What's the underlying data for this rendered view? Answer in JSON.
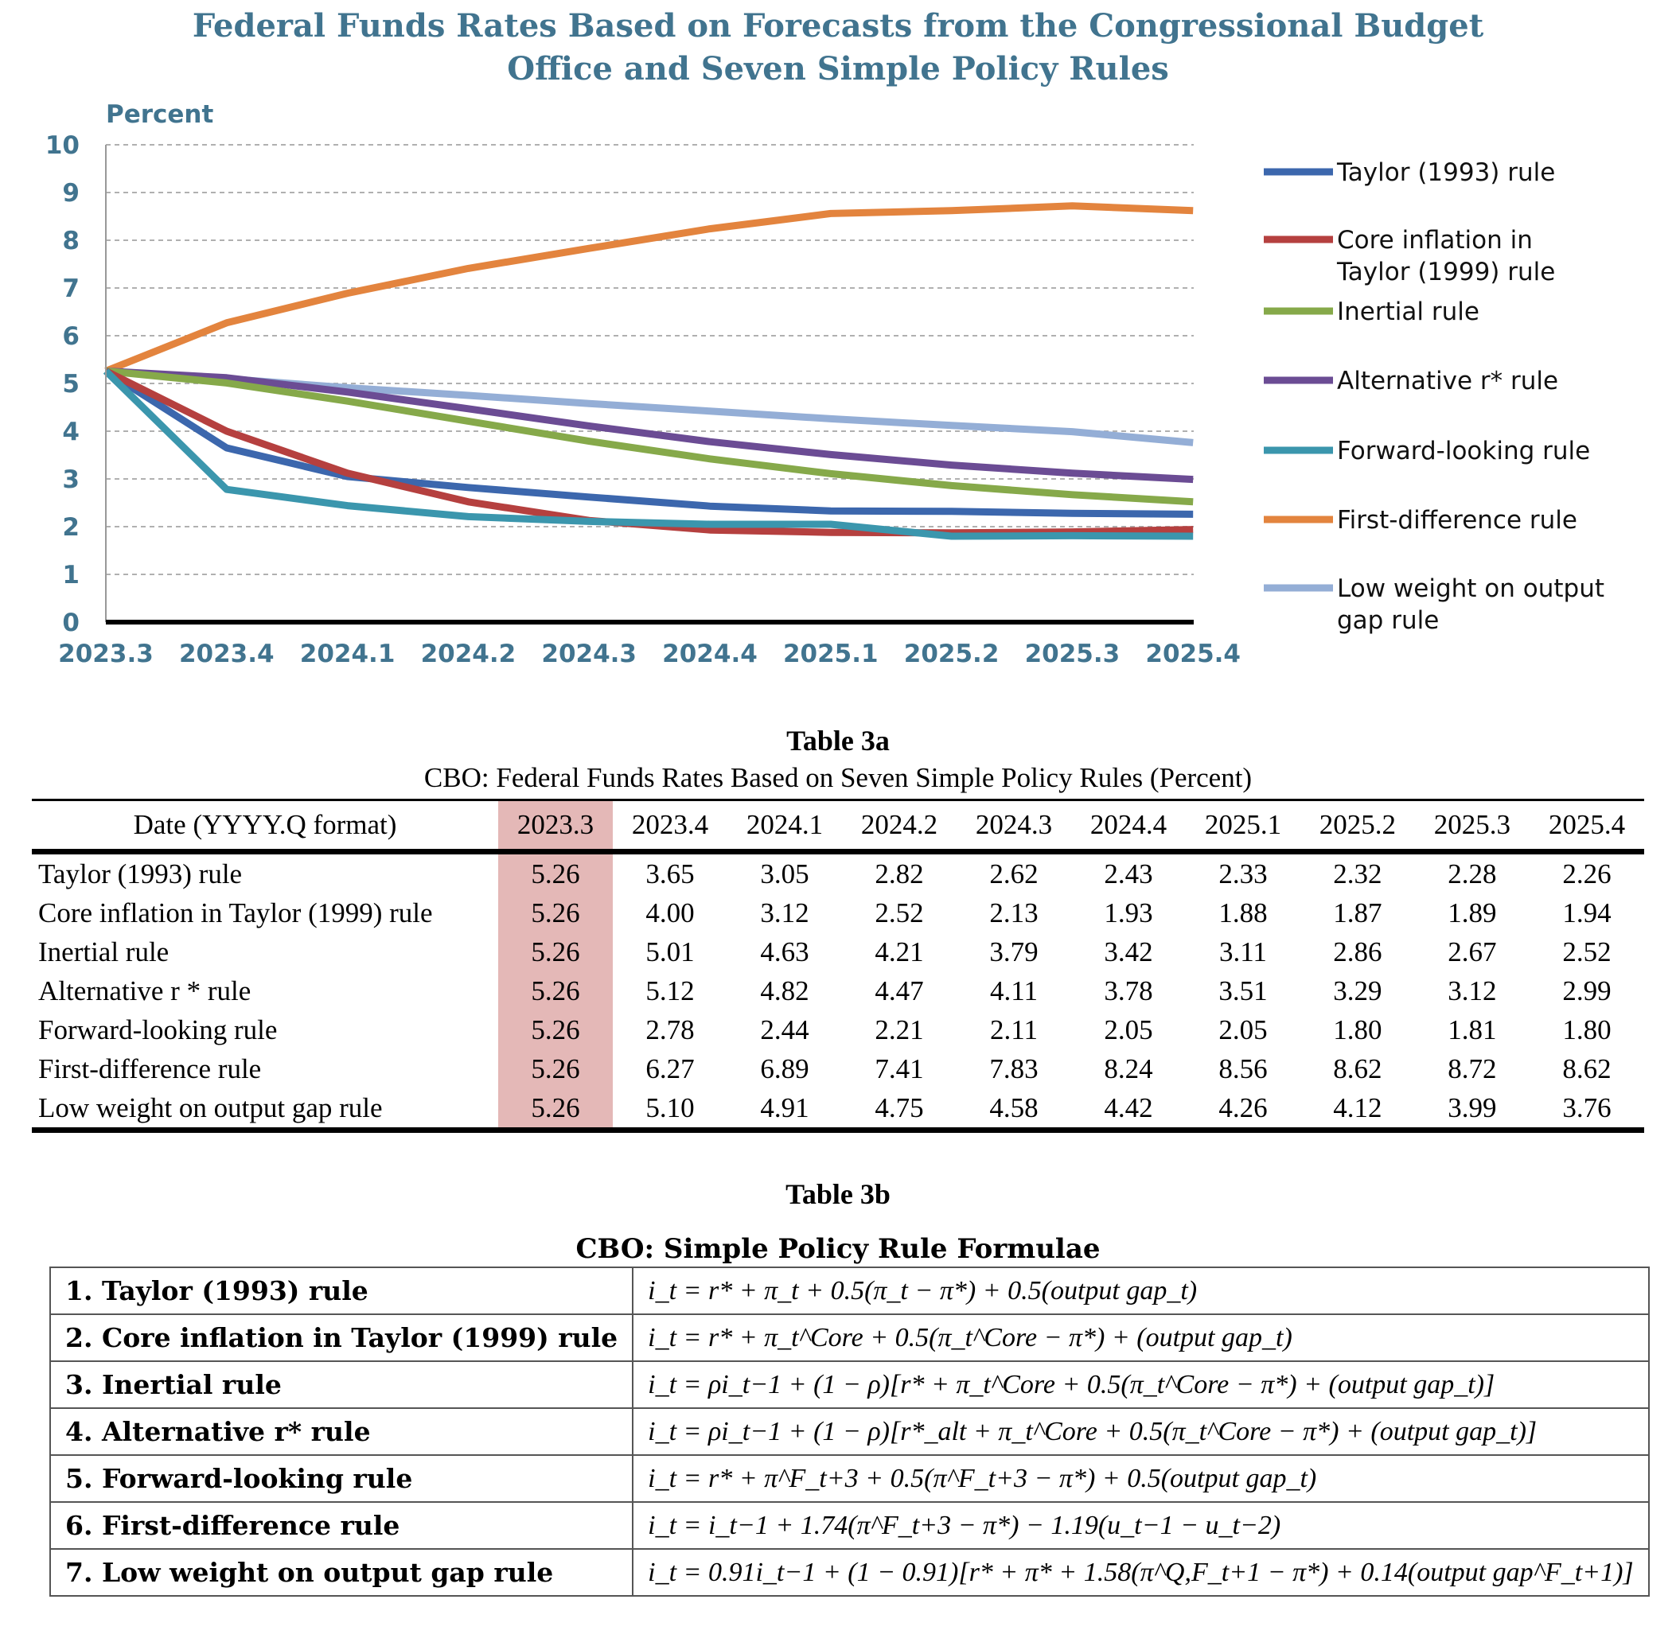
{
  "chart_data": {
    "type": "line",
    "title_line1": "Federal Funds Rates Based on Forecasts from the Congressional Budget",
    "title_line2": "Office and Seven Simple Policy Rules",
    "ylabel": "Percent",
    "xlabel": "",
    "ylim": [
      0,
      10
    ],
    "yticks": [
      "0",
      "1",
      "2",
      "3",
      "4",
      "5",
      "6",
      "7",
      "8",
      "9",
      "10"
    ],
    "grid": "horizontal-dashed",
    "legend_position": "right",
    "x": [
      "2023.3",
      "2023.4",
      "2024.1",
      "2024.2",
      "2024.3",
      "2024.4",
      "2025.1",
      "2025.2",
      "2025.3",
      "2025.4"
    ],
    "series": [
      {
        "name": "Taylor (1993) rule",
        "name_lines": [
          "Taylor (1993) rule"
        ],
        "color": "#3c67ad",
        "values": [
          5.26,
          3.65,
          3.05,
          2.82,
          2.62,
          2.43,
          2.33,
          2.32,
          2.28,
          2.26
        ]
      },
      {
        "name": "Core inflation in Taylor (1999) rule",
        "name_lines": [
          "Core inflation in",
          "Taylor (1999) rule"
        ],
        "color": "#b5403f",
        "values": [
          5.26,
          4.0,
          3.12,
          2.52,
          2.13,
          1.93,
          1.88,
          1.87,
          1.89,
          1.94
        ]
      },
      {
        "name": "Inertial rule",
        "name_lines": [
          "Inertial rule"
        ],
        "color": "#86a94a",
        "values": [
          5.26,
          5.01,
          4.63,
          4.21,
          3.79,
          3.42,
          3.11,
          2.86,
          2.67,
          2.52
        ]
      },
      {
        "name": "Alternative r* rule",
        "name_lines": [
          "Alternative r* rule"
        ],
        "color": "#6b4c94",
        "values": [
          5.26,
          5.12,
          4.82,
          4.47,
          4.11,
          3.78,
          3.51,
          3.29,
          3.12,
          2.99
        ]
      },
      {
        "name": "Forward-looking rule",
        "name_lines": [
          "Forward-looking rule"
        ],
        "color": "#3b96ad",
        "values": [
          5.26,
          2.78,
          2.44,
          2.21,
          2.11,
          2.05,
          2.05,
          1.8,
          1.81,
          1.8
        ]
      },
      {
        "name": "First-difference rule",
        "name_lines": [
          "First-difference rule"
        ],
        "color": "#e3843e",
        "values": [
          5.26,
          6.27,
          6.89,
          7.41,
          7.83,
          8.24,
          8.56,
          8.62,
          8.72,
          8.62
        ]
      },
      {
        "name": "Low weight on output gap rule",
        "name_lines": [
          "Low weight on output",
          "gap rule"
        ],
        "color": "#94aed6",
        "values": [
          5.26,
          5.1,
          4.91,
          4.75,
          4.58,
          4.42,
          4.26,
          4.12,
          3.99,
          3.76
        ]
      }
    ]
  },
  "table3a": {
    "title": "Table 3a",
    "subtitle": "CBO: Federal Funds Rates Based on Seven Simple Policy Rules (Percent)",
    "date_header": "Date (YYYY.Q format)",
    "highlight_color": "#e4b8b7",
    "columns": [
      "2023.3",
      "2023.4",
      "2024.1",
      "2024.2",
      "2024.3",
      "2024.4",
      "2025.1",
      "2025.2",
      "2025.3",
      "2025.4"
    ],
    "rows": [
      {
        "label": "Taylor (1993) rule",
        "values": [
          "5.26",
          "3.65",
          "3.05",
          "2.82",
          "2.62",
          "2.43",
          "2.33",
          "2.32",
          "2.28",
          "2.26"
        ]
      },
      {
        "label": "Core inflation in Taylor (1999) rule",
        "values": [
          "5.26",
          "4.00",
          "3.12",
          "2.52",
          "2.13",
          "1.93",
          "1.88",
          "1.87",
          "1.89",
          "1.94"
        ]
      },
      {
        "label": "Inertial rule",
        "values": [
          "5.26",
          "5.01",
          "4.63",
          "4.21",
          "3.79",
          "3.42",
          "3.11",
          "2.86",
          "2.67",
          "2.52"
        ]
      },
      {
        "label": "Alternative r * rule",
        "values": [
          "5.26",
          "5.12",
          "4.82",
          "4.47",
          "4.11",
          "3.78",
          "3.51",
          "3.29",
          "3.12",
          "2.99"
        ]
      },
      {
        "label": "Forward-looking rule",
        "values": [
          "5.26",
          "2.78",
          "2.44",
          "2.21",
          "2.11",
          "2.05",
          "2.05",
          "1.80",
          "1.81",
          "1.80"
        ]
      },
      {
        "label": "First-difference rule",
        "values": [
          "5.26",
          "6.27",
          "6.89",
          "7.41",
          "7.83",
          "8.24",
          "8.56",
          "8.62",
          "8.72",
          "8.62"
        ]
      },
      {
        "label": "Low weight on output gap rule",
        "values": [
          "5.26",
          "5.10",
          "4.91",
          "4.75",
          "4.58",
          "4.42",
          "4.26",
          "4.12",
          "3.99",
          "3.76"
        ]
      }
    ]
  },
  "table3b": {
    "title": "Table 3b",
    "subtitle": "CBO: Simple Policy Rule Formulae",
    "rows": [
      {
        "name": "1. Taylor (1993) rule",
        "formula": "i_t = r* + π_t + 0.5(π_t − π*) + 0.5(output gap_t)"
      },
      {
        "name": "2. Core inflation in Taylor (1999) rule",
        "formula": "i_t = r* + π_t^Core + 0.5(π_t^Core − π*) + (output gap_t)"
      },
      {
        "name": "3. Inertial rule",
        "formula": "i_t = ρi_t−1 + (1 − ρ)[r* + π_t^Core + 0.5(π_t^Core − π*) + (output gap_t)]"
      },
      {
        "name": "4. Alternative r* rule",
        "formula": "i_t = ρi_t−1 + (1 − ρ)[r*_alt + π_t^Core + 0.5(π_t^Core − π*) + (output gap_t)]"
      },
      {
        "name": "5. Forward-looking rule",
        "formula": "i_t = r* + π^F_t+3 + 0.5(π^F_t+3 − π*) + 0.5(output gap_t)"
      },
      {
        "name": "6. First-difference rule",
        "formula": "i_t = i_t−1 + 1.74(π^F_t+3 − π*) − 1.19(u_t−1 − u_t−2)"
      },
      {
        "name": "7. Low weight on output gap rule",
        "formula": "i_t = 0.91i_t−1 + (1 − 0.91)[r* + π* + 1.58(π^Q,F_t+1 − π*) + 0.14(output gap^F_t+1)]"
      }
    ]
  }
}
